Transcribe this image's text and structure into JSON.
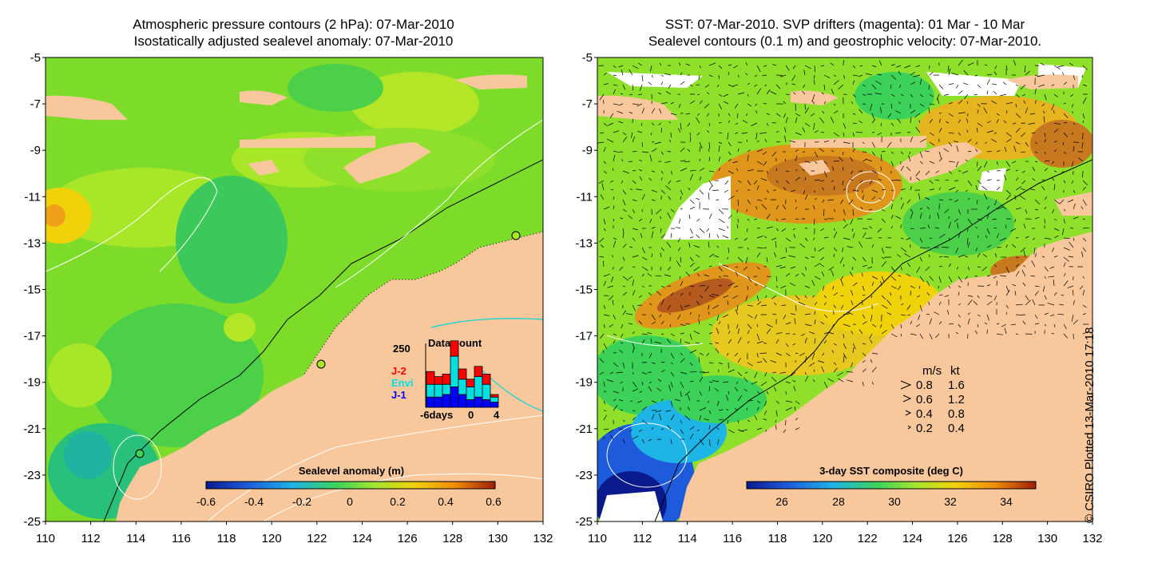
{
  "left_panel": {
    "title_line1": "Atmospheric pressure contours (2 hPa): 07-Mar-2010",
    "title_line2": "Isostatically adjusted sealevel anomaly: 07-Mar-2010",
    "colorbar": {
      "label": "Sealevel anomaly (m)",
      "ticks": [
        "-0.6",
        "-0.4",
        "-0.2",
        "0",
        "0.2",
        "0.4",
        "0.6"
      ],
      "colors": [
        "#0a1a8c",
        "#1e5adc",
        "#1eb4e6",
        "#3cd25a",
        "#a0e632",
        "#f0d20a",
        "#f08c0a",
        "#a01e0a"
      ]
    },
    "histogram": {
      "title": "Data count",
      "y_max": "250",
      "x_ticks": [
        "-6days",
        "0",
        "4"
      ],
      "legend": [
        {
          "label": "J-2",
          "color": "#ff0000"
        },
        {
          "label": "Envi",
          "color": "#00e0e0"
        },
        {
          "label": "J-1",
          "color": "#0000ff"
        }
      ],
      "bars": [
        {
          "j1": 40,
          "envi": 50,
          "j2": 50
        },
        {
          "j1": 40,
          "envi": 50,
          "j2": 30
        },
        {
          "j1": 50,
          "envi": 40,
          "j2": 40
        },
        {
          "j1": 80,
          "envi": 120,
          "j2": 60
        },
        {
          "j1": 50,
          "envi": 60,
          "j2": 40
        },
        {
          "j1": 30,
          "envi": 50,
          "j2": 30
        },
        {
          "j1": 40,
          "envi": 80,
          "j2": 40
        },
        {
          "j1": 30,
          "envi": 60,
          "j2": 40
        },
        {
          "j1": 20,
          "envi": 20,
          "j2": 10
        }
      ]
    }
  },
  "right_panel": {
    "title_line1": "SST: 07-Mar-2010. SVP drifters (magenta): 01 Mar - 10 Mar",
    "title_line2": "Sealevel contours (0.1 m) and geostrophic velocity: 07-Mar-2010.",
    "colorbar": {
      "label": "3-day SST composite (deg C)",
      "ticks": [
        "26",
        "28",
        "30",
        "32",
        "34"
      ],
      "colors": [
        "#0a1a8c",
        "#1e5adc",
        "#1eb4e6",
        "#3cd25a",
        "#a0e632",
        "#f0d20a",
        "#f08c0a",
        "#a01e0a"
      ]
    },
    "velocity_legend": {
      "header_ms": "m/s",
      "header_kt": "kt",
      "rows": [
        {
          "ms": "0.8",
          "kt": "1.6"
        },
        {
          "ms": "0.6",
          "kt": "1.2"
        },
        {
          "ms": "0.4",
          "kt": "0.8"
        },
        {
          "ms": "0.2",
          "kt": "0.4"
        }
      ]
    }
  },
  "axes": {
    "lat_ticks": [
      "-5",
      "-7",
      "-9",
      "-11",
      "-13",
      "-15",
      "-17",
      "-19",
      "-21",
      "-23",
      "-25"
    ],
    "lon_ticks": [
      "110",
      "112",
      "114",
      "116",
      "118",
      "120",
      "122",
      "124",
      "126",
      "128",
      "130",
      "132"
    ]
  },
  "colors": {
    "land": "#f8c89c",
    "contour": "#ffffff",
    "coastline": "#000000",
    "cyan_contour": "#00d8d8"
  },
  "copyright": "© CSIRO Plotted 13-Mar-2010 17:18"
}
